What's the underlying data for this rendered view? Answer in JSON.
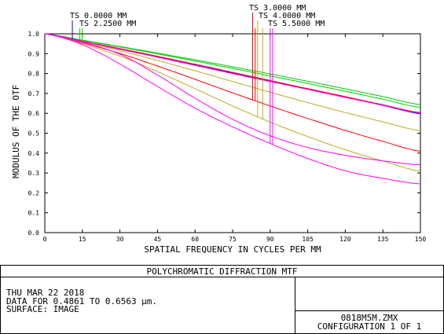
{
  "footer": {
    "title": "POLYCHROMATIC DIFFRACTION MTF",
    "date": "THU MAR 22 2018",
    "data_range": "DATA FOR 0.4861 TO 0.6563 µm.",
    "surface": "SURFACE: IMAGE",
    "filename": "0818M5M.ZMX",
    "configuration": "CONFIGURATION 1 OF 1"
  },
  "chart_data": {
    "type": "line",
    "title": "POLYCHROMATIC DIFFRACTION MTF",
    "xlabel": "SPATIAL FREQUENCY IN CYCLES PER MM",
    "ylabel": "MODULUS OF THE OTF",
    "xlim": [
      0,
      150
    ],
    "ylim": [
      0,
      1.0
    ],
    "x_ticks": [
      0,
      15,
      30,
      45,
      60,
      75,
      90,
      105,
      120,
      135,
      150
    ],
    "y_ticks": [
      0.0,
      0.1,
      0.2,
      0.3,
      0.4,
      0.5,
      0.6,
      0.7,
      0.8,
      0.9,
      1.0
    ],
    "x_tick_labels": [
      "0",
      "15",
      "30",
      "45",
      "60",
      "75",
      "90",
      "105",
      "120",
      "135",
      "150"
    ],
    "y_tick_labels": [
      "0.0",
      "0.1",
      "0.2",
      "0.3",
      "0.4",
      "0.5",
      "0.6",
      "0.7",
      "0.8",
      "0.9",
      "1.0"
    ],
    "grid": false,
    "legend": [
      {
        "label": "TS 0.0000 MM",
        "color": "#0000ff",
        "marker_x": 11
      },
      {
        "label": "TS 2.2500 MM",
        "color": "#00cc00",
        "marker_x": 14
      },
      {
        "label": "TS 3.0000 MM",
        "color": "#ff0000",
        "marker_x": 83
      },
      {
        "label": "TS 4.0000 MM",
        "color": "#bbaa22",
        "marker_x": 85
      },
      {
        "label": "TS 5.5000 MM",
        "color": "#ff00ff",
        "marker_x": 90
      }
    ],
    "series": [
      {
        "color": "#0000ff",
        "x": [
          0,
          15,
          30,
          45,
          60,
          75,
          90,
          105,
          120,
          135,
          150
        ],
        "y": [
          1.0,
          0.962,
          0.923,
          0.883,
          0.843,
          0.803,
          0.763,
          0.722,
          0.681,
          0.64,
          0.598
        ]
      },
      {
        "color": "#00cc00",
        "x": [
          0,
          15,
          30,
          45,
          60,
          75,
          90,
          105,
          120,
          135,
          150
        ],
        "y": [
          1.0,
          0.967,
          0.934,
          0.899,
          0.863,
          0.826,
          0.788,
          0.75,
          0.711,
          0.671,
          0.63
        ]
      },
      {
        "color": "#00cc00",
        "x": [
          0,
          15,
          30,
          45,
          60,
          75,
          90,
          105,
          120,
          135,
          150
        ],
        "y": [
          1.0,
          0.968,
          0.936,
          0.903,
          0.869,
          0.834,
          0.798,
          0.761,
          0.723,
          0.684,
          0.644
        ]
      },
      {
        "color": "#ff0000",
        "x": [
          0,
          15,
          30,
          45,
          60,
          75,
          90,
          105,
          120,
          135,
          150
        ],
        "y": [
          1.0,
          0.963,
          0.926,
          0.887,
          0.847,
          0.806,
          0.765,
          0.724,
          0.684,
          0.643,
          0.604
        ]
      },
      {
        "color": "#ff0000",
        "x": [
          0,
          15,
          30,
          45,
          60,
          75,
          90,
          105,
          120,
          135,
          150
        ],
        "y": [
          1.0,
          0.955,
          0.901,
          0.838,
          0.771,
          0.703,
          0.637,
          0.574,
          0.514,
          0.459,
          0.409
        ]
      },
      {
        "color": "#bbaa22",
        "x": [
          0,
          15,
          30,
          45,
          60,
          75,
          90,
          105,
          120,
          135,
          150
        ],
        "y": [
          1.0,
          0.96,
          0.915,
          0.866,
          0.814,
          0.76,
          0.706,
          0.654,
          0.604,
          0.557,
          0.513
        ]
      },
      {
        "color": "#bbaa22",
        "x": [
          0,
          15,
          30,
          45,
          60,
          75,
          90,
          105,
          120,
          135,
          150
        ],
        "y": [
          1.0,
          0.95,
          0.888,
          0.81,
          0.724,
          0.637,
          0.556,
          0.483,
          0.417,
          0.36,
          0.309
        ]
      },
      {
        "color": "#ff00ff",
        "x": [
          0,
          15,
          30,
          45,
          60,
          75,
          90,
          105,
          120,
          135,
          150
        ],
        "y": [
          1.0,
          0.962,
          0.922,
          0.882,
          0.841,
          0.8,
          0.76,
          0.72,
          0.68,
          0.641,
          0.601
        ]
      },
      {
        "color": "#ff00ff",
        "x": [
          0,
          15,
          30,
          45,
          60,
          75,
          90,
          105,
          120,
          135,
          150
        ],
        "y": [
          1.0,
          0.958,
          0.897,
          0.793,
          0.676,
          0.57,
          0.487,
          0.428,
          0.389,
          0.361,
          0.341
        ]
      },
      {
        "color": "#ff00ff",
        "x": [
          0,
          15,
          30,
          45,
          60,
          75,
          90,
          105,
          120,
          135,
          150
        ],
        "y": [
          1.0,
          0.945,
          0.848,
          0.735,
          0.626,
          0.532,
          0.448,
          0.373,
          0.311,
          0.273,
          0.245
        ]
      }
    ]
  }
}
